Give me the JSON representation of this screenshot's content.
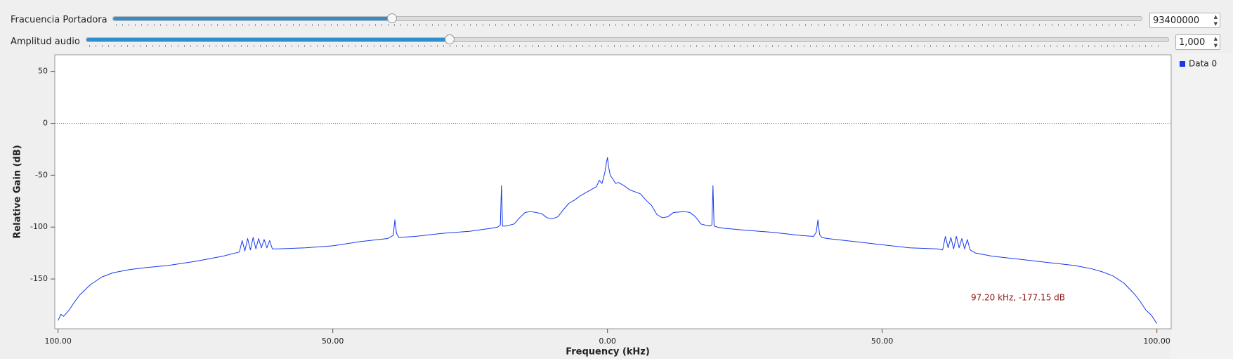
{
  "controls": [
    {
      "label": "Fracuencia Portadora",
      "value": "93400000"
    },
    {
      "label": "Amplitud audio",
      "value": "1,000"
    }
  ],
  "chart_data": {
    "type": "line",
    "x_label": "Frequency (kHz)",
    "y_label": "Relative Gain (dB)",
    "xlim": [
      -100.6,
      102.6
    ],
    "ylim": [
      -198,
      66
    ],
    "xticks": [
      {
        "value": -100,
        "label": "100.00"
      },
      {
        "value": -50,
        "label": "50.00"
      },
      {
        "value": 0,
        "label": "0.00"
      },
      {
        "value": 50,
        "label": "50.00"
      },
      {
        "value": 100,
        "label": "100.00"
      }
    ],
    "yticks": [
      50,
      0,
      -50,
      -100,
      -150
    ],
    "marker_line": 0,
    "legend": "top-right",
    "annotation": "97.20 kHz, -177.15 dB",
    "x": [
      -100,
      -99.5,
      -99,
      -98,
      -97,
      -96,
      -95,
      -94,
      -92,
      -90,
      -87,
      -84,
      -80,
      -75,
      -70,
      -67,
      -66.5,
      -66,
      -65.5,
      -65,
      -64.5,
      -64,
      -63.5,
      -63,
      -62.5,
      -62,
      -61.5,
      -61,
      -60,
      -55,
      -50,
      -45,
      -40,
      -39,
      -38.7,
      -38.4,
      -38,
      -35,
      -30,
      -25,
      -21,
      -20,
      -19.5,
      -19.3,
      -19.1,
      -18.5,
      -17,
      -16,
      -15,
      -14,
      -12,
      -11,
      -10,
      -9,
      -8,
      -7,
      -6,
      -5,
      -4,
      -3,
      -2,
      -1.5,
      -1,
      -0.5,
      -0.2,
      0,
      0.2,
      0.5,
      1,
      1.5,
      2,
      3,
      4,
      5,
      6,
      7,
      8,
      9,
      10,
      11,
      12,
      14,
      15,
      16,
      17,
      18.5,
      19,
      19.2,
      19.4,
      20,
      21,
      25,
      30,
      35,
      37.5,
      38,
      38.3,
      38.6,
      39,
      40,
      45,
      50,
      55,
      60,
      61,
      61.5,
      62,
      62.5,
      63,
      63.5,
      64,
      64.5,
      65,
      65.5,
      66,
      67,
      70,
      75,
      80,
      85,
      88,
      90,
      92,
      94,
      96,
      97,
      98,
      99,
      99.5,
      100
    ],
    "series": [
      {
        "name": "Data 0",
        "color": "#1538ee",
        "values": [
          -190,
          -184,
          -186,
          -180,
          -172,
          -165,
          -160,
          -155,
          -148,
          -144,
          -141,
          -139,
          -137,
          -133,
          -128,
          -124,
          -113,
          -123,
          -111,
          -122,
          -110,
          -121,
          -111,
          -120,
          -112,
          -120,
          -113,
          -121,
          -121,
          -120,
          -118,
          -114,
          -111,
          -108,
          -93,
          -106,
          -110,
          -109,
          -106,
          -104,
          -101,
          -100,
          -98,
          -60,
          -99,
          -99,
          -97,
          -91,
          -86,
          -85,
          -87,
          -91,
          -92,
          -90,
          -83,
          -77,
          -74,
          -70,
          -67,
          -64,
          -61,
          -55,
          -58,
          -48,
          -38,
          -33,
          -42,
          -50,
          -54,
          -58,
          -57,
          -60,
          -64,
          -66,
          -68,
          -74,
          -79,
          -88,
          -91,
          -90,
          -86,
          -85,
          -86,
          -90,
          -97,
          -99,
          -98,
          -60,
          -99,
          -100,
          -101,
          -103,
          -105,
          -108,
          -109,
          -105,
          -93,
          -107,
          -110,
          -111,
          -114,
          -117,
          -120,
          -121,
          -122,
          -109,
          -120,
          -110,
          -121,
          -109,
          -120,
          -111,
          -121,
          -112,
          -122,
          -125,
          -128,
          -131,
          -134,
          -137,
          -140,
          -143,
          -147,
          -154,
          -165,
          -172,
          -180,
          -185,
          -189,
          -193
        ]
      }
    ]
  }
}
